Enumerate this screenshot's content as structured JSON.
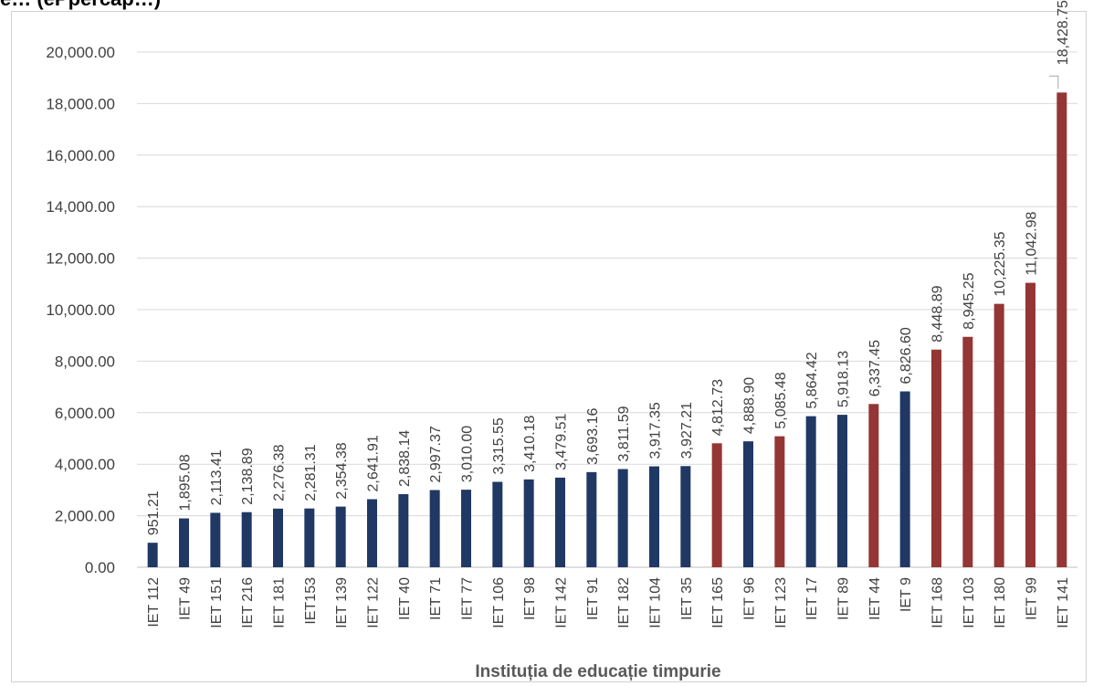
{
  "header": {
    "title_fragment": "e… (ePpercap…)"
  },
  "chart_data": {
    "type": "bar",
    "title": "",
    "xlabel": "Instituția de educație timpurie",
    "ylabel": "",
    "ylim": [
      0,
      20000
    ],
    "yticks": [
      "0.00",
      "2,000.00",
      "4,000.00",
      "6,000.00",
      "8,000.00",
      "10,000.00",
      "12,000.00",
      "14,000.00",
      "16,000.00",
      "18,000.00",
      "20,000.00"
    ],
    "grid": true,
    "categories": [
      "IET 112",
      "IET 49",
      "IET 151",
      "IET 216",
      "IET 181",
      "IET153",
      "IET 139",
      "IET 122",
      "IET 40",
      "IET 71",
      "IET 77",
      "IET 106",
      "IET 98",
      "IET 142",
      "IET 91",
      "IET 182",
      "IET 104",
      "IET 35",
      "IET 165",
      "IET 96",
      "IET 123",
      "IET 17",
      "IET 89",
      "IET 44",
      "IET 9",
      "IET 168",
      "IET 103",
      "IET 180",
      "IET 99",
      "IET 141"
    ],
    "values": [
      951.21,
      1895.08,
      2113.41,
      2138.89,
      2276.38,
      2281.31,
      2354.38,
      2641.91,
      2838.14,
      2997.37,
      3010.0,
      3315.55,
      3410.18,
      3479.51,
      3693.16,
      3811.59,
      3917.35,
      3927.21,
      4812.73,
      4888.9,
      5085.48,
      5864.42,
      5918.13,
      6337.45,
      6826.6,
      8448.89,
      8945.25,
      10225.35,
      11042.98,
      18428.75
    ],
    "labels": [
      "951.21",
      "1,895.08",
      "2,113.41",
      "2,138.89",
      "2,276.38",
      "2,281.31",
      "2,354.38",
      "2,641.91",
      "2,838.14",
      "2,997.37",
      "3,010.00",
      "3,315.55",
      "3,410.18",
      "3,479.51",
      "3,693.16",
      "3,811.59",
      "3,917.35",
      "3,927.21",
      "4,812.73",
      "4,888.90",
      "5,085.48",
      "5,864.42",
      "5,918.13",
      "6,337.45",
      "6,826.60",
      "8,448.89",
      "8,945.25",
      "10,225.35",
      "11,042.98",
      "18,428.75"
    ],
    "bar_colors": [
      "#203864",
      "#203864",
      "#203864",
      "#203864",
      "#203864",
      "#203864",
      "#203864",
      "#203864",
      "#203864",
      "#203864",
      "#203864",
      "#203864",
      "#203864",
      "#203864",
      "#203864",
      "#203864",
      "#203864",
      "#203864",
      "#943634",
      "#203864",
      "#943634",
      "#203864",
      "#203864",
      "#943634",
      "#203864",
      "#943634",
      "#943634",
      "#943634",
      "#943634",
      "#943634"
    ],
    "colors": {
      "navy": "#203864",
      "red": "#943634",
      "grid": "#d9d9d9"
    }
  }
}
